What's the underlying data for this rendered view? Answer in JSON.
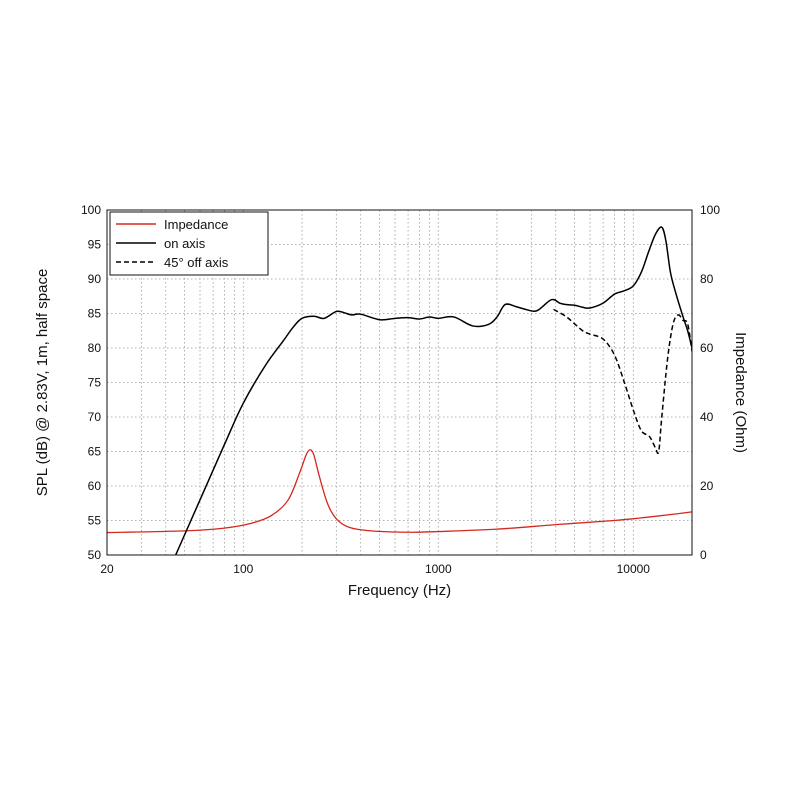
{
  "chart_data": {
    "type": "line",
    "xlabel": "Frequency (Hz)",
    "ylabel_left": "SPL (dB) @ 2.83V, 1m, half space",
    "ylabel_right": "Impedance (Ohm)",
    "x_scale": "log",
    "xlim": [
      20,
      20000
    ],
    "ylim_left": [
      50,
      100
    ],
    "ylim_right": [
      0,
      100
    ],
    "x_tick_labels": [
      "20",
      "100",
      "1000",
      "10000"
    ],
    "y_left_tick_labels": [
      "50",
      "55",
      "60",
      "65",
      "70",
      "75",
      "80",
      "85",
      "90",
      "95",
      "100"
    ],
    "y_right_tick_labels": [
      "0",
      "20",
      "40",
      "60",
      "80",
      "100"
    ],
    "grid": true,
    "legend_position": "top-left",
    "series": [
      {
        "name": "Impedance",
        "axis": "right",
        "color": "#d4281e",
        "dash": "solid",
        "x": [
          20,
          50,
          80,
          110,
          140,
          170,
          195,
          210,
          220,
          230,
          245,
          270,
          300,
          350,
          450,
          700,
          1000,
          2000,
          4000,
          8000,
          12000,
          16000,
          20000
        ],
        "y": [
          6.5,
          7,
          7.8,
          9.2,
          11.5,
          16,
          24,
          29,
          30.5,
          29,
          23,
          15,
          10.5,
          8,
          7,
          6.6,
          6.8,
          7.5,
          8.8,
          10,
          11,
          11.8,
          12.5
        ]
      },
      {
        "name": "on axis",
        "axis": "left",
        "color": "#000000",
        "dash": "solid",
        "x": [
          45,
          60,
          80,
          100,
          130,
          160,
          180,
          200,
          230,
          260,
          300,
          330,
          360,
          400,
          500,
          600,
          700,
          800,
          900,
          1000,
          1200,
          1500,
          1800,
          2000,
          2200,
          2500,
          2800,
          3200,
          3800,
          4200,
          4500,
          5000,
          5500,
          6000,
          7000,
          8000,
          9000,
          10000,
          11000,
          12000,
          13000,
          14000,
          14700,
          15500,
          16500,
          18000,
          19000,
          20000
        ],
        "y": [
          50,
          58,
          66,
          72,
          77.5,
          81,
          83,
          84.3,
          84.6,
          84.3,
          85.3,
          85.1,
          84.8,
          84.9,
          84.1,
          84.3,
          84.4,
          84.2,
          84.5,
          84.3,
          84.5,
          83.2,
          83.4,
          84.5,
          86.3,
          86,
          85.6,
          85.4,
          87,
          86.5,
          86.3,
          86.2,
          85.9,
          85.8,
          86.5,
          87.8,
          88.3,
          89,
          91,
          94,
          96.5,
          97.5,
          95.5,
          91,
          88,
          84.5,
          82.5,
          80
        ]
      },
      {
        "name": "45° off axis",
        "axis": "left",
        "color": "#000000",
        "dash": "dashed",
        "x": [
          3900,
          4500,
          5000,
          5500,
          6000,
          7000,
          8000,
          9000,
          10000,
          11000,
          12000,
          12500,
          13000,
          13500,
          14000,
          15000,
          16000,
          17000,
          18000,
          19000,
          20000
        ],
        "y": [
          85.6,
          84.6,
          83.5,
          82.5,
          82,
          81.3,
          79,
          75,
          71,
          68,
          67.3,
          66.5,
          65.5,
          65,
          70,
          78.5,
          83.5,
          84.8,
          84,
          83.5,
          79.5
        ]
      }
    ]
  }
}
